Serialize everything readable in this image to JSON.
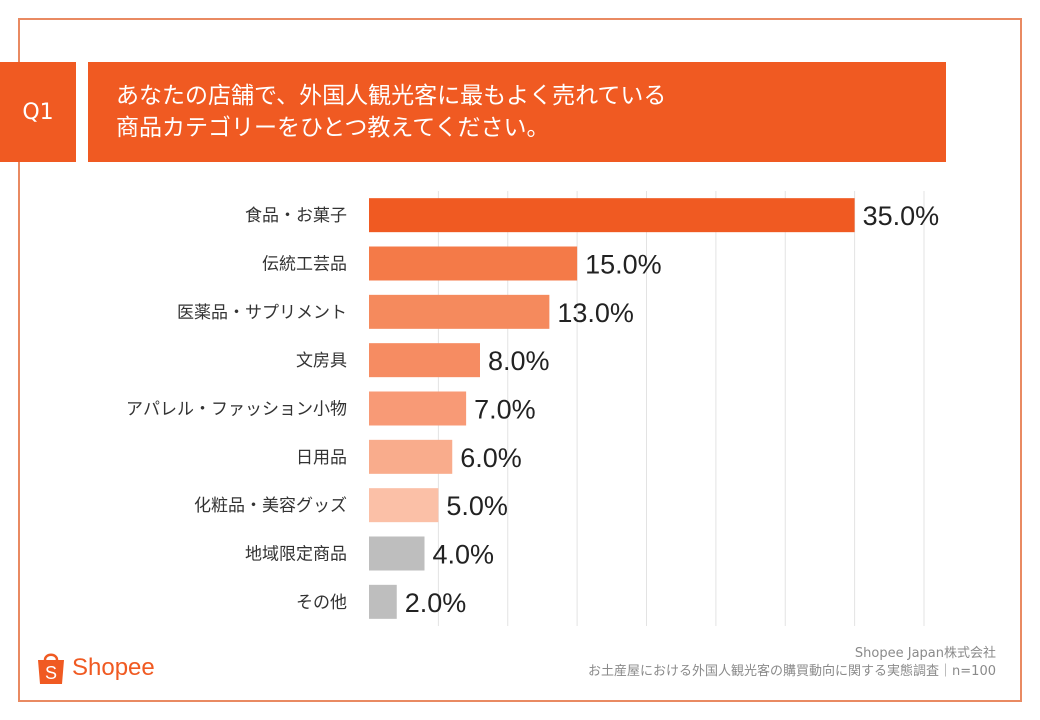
{
  "question": {
    "label": "Q1",
    "line1": "あなたの店舗で、外国人観光客に最もよく売れている",
    "line2": "商品カテゴリーをひとつ教えてください。"
  },
  "chart_data": {
    "type": "bar",
    "orientation": "horizontal",
    "categories": [
      "食品・お菓子",
      "伝統工芸品",
      "医薬品・サプリメント",
      "文房具",
      "アパレル・ファッション小物",
      "日用品",
      "化粧品・美容グッズ",
      "地域限定商品",
      "その他"
    ],
    "values": [
      35.0,
      15.0,
      13.0,
      8.0,
      7.0,
      6.0,
      5.0,
      4.0,
      2.0
    ],
    "value_labels": [
      "35.0%",
      "15.0%",
      "13.0%",
      "8.0%",
      "7.0%",
      "6.0%",
      "5.0%",
      "4.0%",
      "2.0%"
    ],
    "colors": [
      "#f05a22",
      "#f47a48",
      "#f58a5d",
      "#f68c62",
      "#f89a76",
      "#f9ac8c",
      "#fbc0a7",
      "#bebebe",
      "#bebebe"
    ],
    "xlim": [
      0,
      40
    ],
    "grid_interval": 5,
    "grid": true,
    "title": "",
    "xlabel": "",
    "ylabel": ""
  },
  "brand": {
    "logo_text": "Shopee",
    "accent": "#f05a22"
  },
  "source": {
    "company": "Shopee Japan株式会社",
    "survey": "お土産屋における外国人観光客の購買動向に関する実態調査｜n=100"
  }
}
